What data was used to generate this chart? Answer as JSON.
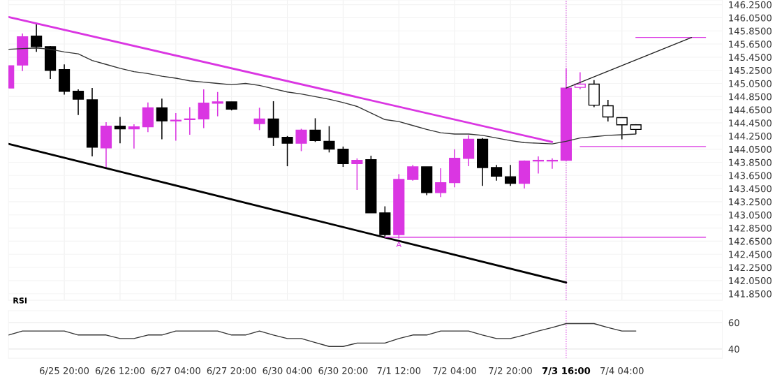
{
  "chart_data": [
    {
      "type": "candlestick",
      "categories": [
        null,
        null,
        null,
        null,
        "6/25 20:00",
        null,
        null,
        null,
        "6/26 12:00",
        null,
        null,
        null,
        "6/27 04:00",
        null,
        null,
        null,
        "6/27 20:00",
        null,
        null,
        null,
        "6/30 04:00",
        null,
        null,
        null,
        "6/30 20:00",
        null,
        null,
        null,
        "7/1 12:00",
        null,
        null,
        null,
        "7/2 04:00",
        null,
        null,
        null,
        "7/2 20:00",
        null,
        null,
        null,
        "7/3 16:00",
        null,
        null,
        null,
        "7/4 04:00",
        null,
        null,
        null,
        null,
        null,
        null
      ],
      "ohlc": [
        [
          144.98,
          145.32,
          144.98,
          145.32
        ],
        [
          145.33,
          145.81,
          145.24,
          145.76
        ],
        [
          145.77,
          145.96,
          145.53,
          145.61
        ],
        [
          145.61,
          145.62,
          145.12,
          145.25
        ],
        [
          145.26,
          145.34,
          144.88,
          144.93
        ],
        [
          144.93,
          144.96,
          144.57,
          144.81
        ],
        [
          144.8,
          144.98,
          143.94,
          144.08
        ],
        [
          144.07,
          144.46,
          143.77,
          144.4
        ],
        [
          144.4,
          144.54,
          144.14,
          144.36
        ],
        [
          144.36,
          144.43,
          144.06,
          144.39
        ],
        [
          144.39,
          144.76,
          144.31,
          144.68
        ],
        [
          144.68,
          144.82,
          144.2,
          144.48
        ],
        [
          144.48,
          144.6,
          144.18,
          144.49
        ],
        [
          144.5,
          144.69,
          144.27,
          144.51
        ],
        [
          144.51,
          144.96,
          144.37,
          144.75
        ],
        [
          144.75,
          144.92,
          144.55,
          144.77
        ],
        [
          144.77,
          144.77,
          144.64,
          144.66
        ],
        null,
        [
          144.44,
          144.68,
          144.34,
          144.51
        ],
        [
          144.51,
          144.78,
          144.1,
          144.23
        ],
        [
          144.23,
          144.25,
          143.79,
          144.14
        ],
        [
          144.14,
          144.36,
          144.02,
          144.34
        ],
        [
          144.34,
          144.52,
          144.16,
          144.18
        ],
        [
          144.17,
          144.4,
          144.0,
          144.05
        ],
        [
          144.05,
          144.09,
          143.78,
          143.83
        ],
        [
          143.83,
          143.91,
          143.43,
          143.88
        ],
        [
          143.89,
          143.95,
          143.08,
          143.08
        ],
        [
          143.08,
          143.18,
          142.72,
          142.75
        ],
        [
          142.75,
          143.67,
          142.69,
          143.59
        ],
        [
          143.59,
          143.81,
          143.57,
          143.78
        ],
        [
          143.78,
          143.78,
          143.35,
          143.39
        ],
        [
          143.39,
          143.76,
          143.32,
          143.54
        ],
        [
          143.54,
          144.05,
          143.47,
          143.91
        ],
        [
          143.91,
          144.26,
          143.79,
          144.2
        ],
        [
          144.2,
          144.22,
          143.49,
          143.77
        ],
        [
          143.77,
          143.81,
          143.57,
          143.64
        ],
        [
          143.63,
          143.81,
          143.49,
          143.53
        ],
        [
          143.53,
          143.88,
          143.45,
          143.87
        ],
        [
          143.87,
          143.94,
          143.68,
          143.88
        ],
        [
          143.87,
          143.91,
          143.75,
          143.88
        ],
        [
          143.88,
          145.28,
          143.88,
          144.98
        ],
        [
          144.99,
          145.22,
          144.96,
          145.04
        ],
        [
          145.04,
          145.1,
          144.69,
          144.72
        ],
        [
          144.71,
          144.8,
          144.47,
          144.54
        ],
        [
          144.53,
          144.53,
          144.2,
          144.42
        ],
        [
          144.42,
          144.43,
          144.28,
          144.35
        ],
        null,
        null,
        null,
        null,
        null
      ],
      "colors": [
        "#da36e2",
        "#da36e2",
        "#000000",
        "#000000",
        "#000000",
        "#000000",
        "#000000",
        "#da36e2",
        "#000000",
        "#da36e2",
        "#da36e2",
        "#000000",
        "#da36e2",
        "#da36e2",
        "#da36e2",
        "#da36e2",
        "#000000",
        null,
        "#da36e2",
        "#000000",
        "#000000",
        "#da36e2",
        "#000000",
        "#000000",
        "#000000",
        "#da36e2",
        "#000000",
        "#000000",
        "#da36e2",
        "#da36e2",
        "#000000",
        "#da36e2",
        "#da36e2",
        "#da36e2",
        "#000000",
        "#000000",
        "#000000",
        "#da36e2",
        "#da36e2",
        "#da36e2",
        "#da36e2",
        "#ffffff",
        "#ffffff",
        "#ffffff",
        "#ffffff",
        "#ffffff",
        null,
        null,
        null,
        null,
        null
      ],
      "series": [
        {
          "type": "line",
          "color": "#333333",
          "values": [
            145.57,
            145.58,
            145.59,
            145.57,
            145.53,
            145.5,
            145.4,
            145.34,
            145.28,
            145.23,
            145.2,
            145.16,
            145.13,
            145.09,
            145.07,
            145.05,
            145.03,
            145.05,
            145.02,
            144.97,
            144.92,
            144.89,
            144.85,
            144.81,
            144.76,
            144.7,
            144.6,
            144.5,
            144.47,
            144.41,
            144.35,
            144.3,
            144.28,
            144.28,
            144.26,
            144.22,
            144.18,
            144.15,
            144.14,
            144.13,
            144.17,
            144.22,
            144.24,
            144.26,
            144.27,
            144.28,
            null,
            null,
            null,
            null,
            null
          ]
        },
        {
          "type": "line",
          "color": "#da36e2",
          "values": [
            146.06,
            null,
            null,
            null,
            null,
            null,
            null,
            null,
            null,
            null,
            null,
            null,
            null,
            null,
            null,
            null,
            null,
            null,
            null,
            null,
            null,
            null,
            null,
            null,
            null,
            null,
            null,
            null,
            null,
            null,
            null,
            null,
            null,
            null,
            null,
            null,
            null,
            null,
            null,
            144.16,
            null,
            null,
            null,
            null,
            null,
            null,
            null,
            null,
            null,
            null,
            null
          ]
        },
        {
          "type": "line",
          "color": "#000000",
          "values": [
            144.13,
            null,
            null,
            null,
            null,
            null,
            null,
            null,
            null,
            null,
            null,
            null,
            null,
            null,
            null,
            null,
            null,
            null,
            null,
            null,
            null,
            null,
            null,
            null,
            null,
            null,
            null,
            null,
            null,
            null,
            null,
            null,
            null,
            null,
            null,
            null,
            null,
            null,
            null,
            null,
            142.02,
            null,
            null,
            null,
            null,
            null,
            null,
            null,
            null,
            null,
            null
          ]
        },
        {
          "type": "line",
          "color": "#da36e2",
          "values": [
            null,
            null,
            null,
            null,
            null,
            null,
            null,
            null,
            null,
            null,
            null,
            null,
            null,
            null,
            null,
            null,
            null,
            null,
            null,
            null,
            null,
            null,
            null,
            null,
            null,
            null,
            null,
            null,
            null,
            null,
            null,
            null,
            null,
            null,
            null,
            null,
            null,
            null,
            null,
            null,
            null,
            144.09,
            144.09,
            144.09,
            144.09,
            144.09,
            144.09,
            144.09,
            144.09,
            144.09,
            144.09
          ]
        },
        {
          "type": "line",
          "color": "#da36e2",
          "values": [
            null,
            null,
            null,
            null,
            null,
            null,
            null,
            null,
            null,
            null,
            null,
            null,
            null,
            null,
            null,
            null,
            null,
            null,
            null,
            null,
            null,
            null,
            null,
            null,
            null,
            null,
            null,
            null,
            null,
            null,
            null,
            null,
            null,
            null,
            null,
            null,
            null,
            null,
            null,
            null,
            null,
            null,
            null,
            null,
            null,
            145.75,
            145.75,
            145.75,
            145.75,
            145.75,
            145.75
          ]
        },
        {
          "type": "line",
          "color": "#da36e2",
          "values": [
            null,
            null,
            null,
            null,
            null,
            null,
            null,
            null,
            null,
            null,
            null,
            null,
            null,
            null,
            null,
            null,
            null,
            null,
            null,
            null,
            null,
            null,
            null,
            null,
            null,
            null,
            null,
            142.71,
            142.71,
            142.71,
            142.71,
            142.71,
            142.71,
            142.71,
            142.71,
            142.71,
            142.71,
            142.71,
            142.71,
            142.71,
            142.71,
            142.71,
            142.71,
            142.71,
            142.71,
            142.71,
            142.71,
            142.71,
            142.71,
            142.71,
            142.71
          ]
        },
        {
          "type": "line",
          "color": "#222222",
          "values": [
            null,
            null,
            null,
            null,
            null,
            null,
            null,
            null,
            null,
            null,
            null,
            null,
            null,
            null,
            null,
            null,
            null,
            null,
            null,
            null,
            null,
            null,
            null,
            null,
            null,
            null,
            null,
            null,
            null,
            null,
            null,
            null,
            null,
            null,
            null,
            null,
            null,
            null,
            null,
            null,
            144.98,
            null,
            null,
            null,
            null,
            null,
            null,
            null,
            null,
            145.75,
            null
          ]
        }
      ],
      "ylim": [
        141.75,
        146.32
      ],
      "yticks": [
        {
          "value": 146.25,
          "label": "146.2500"
        },
        {
          "value": 146.05,
          "label": "146.0500"
        },
        {
          "value": 145.85,
          "label": "145.8500"
        },
        {
          "value": 145.65,
          "label": "145.6500"
        },
        {
          "value": 145.45,
          "label": "145.4500"
        },
        {
          "value": 145.25,
          "label": "145.2500"
        },
        {
          "value": 145.05,
          "label": "145.0500"
        },
        {
          "value": 144.85,
          "label": "144.8500"
        },
        {
          "value": 144.65,
          "label": "144.6500"
        },
        {
          "value": 144.45,
          "label": "144.4500"
        },
        {
          "value": 144.25,
          "label": "144.2500"
        },
        {
          "value": 144.05,
          "label": "144.0500"
        },
        {
          "value": 143.85,
          "label": "143.8500"
        },
        {
          "value": 143.65,
          "label": "143.6500"
        },
        {
          "value": 143.45,
          "label": "143.4500"
        },
        {
          "value": 143.25,
          "label": "143.2500"
        },
        {
          "value": 143.05,
          "label": "143.0500"
        },
        {
          "value": 142.85,
          "label": "142.8500"
        },
        {
          "value": 142.65,
          "label": "142.6500"
        },
        {
          "value": 142.45,
          "label": "142.4500"
        },
        {
          "value": 142.25,
          "label": "142.2500"
        },
        {
          "value": 142.05,
          "label": "142.0500"
        },
        {
          "value": 141.85,
          "label": "141.8500"
        }
      ],
      "ref_lines": [
        {
          "axis": "x",
          "value": "7/3 16:00",
          "color": "#da36e2",
          "line_style": "dotted"
        }
      ],
      "annotations": [
        {
          "text": "A",
          "y": 142.59
        }
      ],
      "grid": true,
      "tick_labels": "y"
    },
    {
      "type": "line",
      "title": "RSI",
      "categories": [
        null,
        null,
        null,
        null,
        "6/25 20:00",
        null,
        null,
        null,
        "6/26 12:00",
        null,
        null,
        null,
        "6/27 04:00",
        null,
        null,
        null,
        "6/27 20:00",
        null,
        null,
        null,
        "6/30 04:00",
        null,
        null,
        null,
        "6/30 20:00",
        null,
        null,
        null,
        "7/1 12:00",
        null,
        null,
        null,
        "7/2 04:00",
        null,
        null,
        null,
        "7/2 20:00",
        null,
        null,
        null,
        "7/3 16:00",
        null,
        null,
        null,
        "7/4 04:00",
        null,
        null,
        null,
        null,
        null,
        null
      ],
      "series": [
        {
          "color": "#333333",
          "values": [
            50.6,
            53.6,
            53.6,
            53.6,
            53.6,
            50.6,
            50.6,
            50.6,
            47.9,
            47.9,
            50.6,
            50.6,
            53.6,
            53.6,
            53.6,
            53.6,
            50.6,
            50.6,
            53.6,
            50.6,
            47.9,
            47.9,
            44.9,
            41.9,
            41.9,
            44.5,
            44.5,
            44.5,
            47.9,
            50.6,
            50.6,
            53.6,
            53.6,
            53.6,
            50.6,
            47.9,
            47.9,
            50.6,
            53.6,
            56.2,
            59.2,
            59.2,
            59.2,
            56.2,
            53.6,
            53.6,
            null,
            null,
            null,
            null,
            null
          ]
        }
      ],
      "ylim": [
        33,
        69
      ],
      "yticks": [
        40,
        60
      ],
      "ref_lines": [
        {
          "axis": "x",
          "value": "7/3 16:00",
          "color": "#da36e2",
          "line_style": "dotted"
        }
      ],
      "grid": "y"
    }
  ]
}
